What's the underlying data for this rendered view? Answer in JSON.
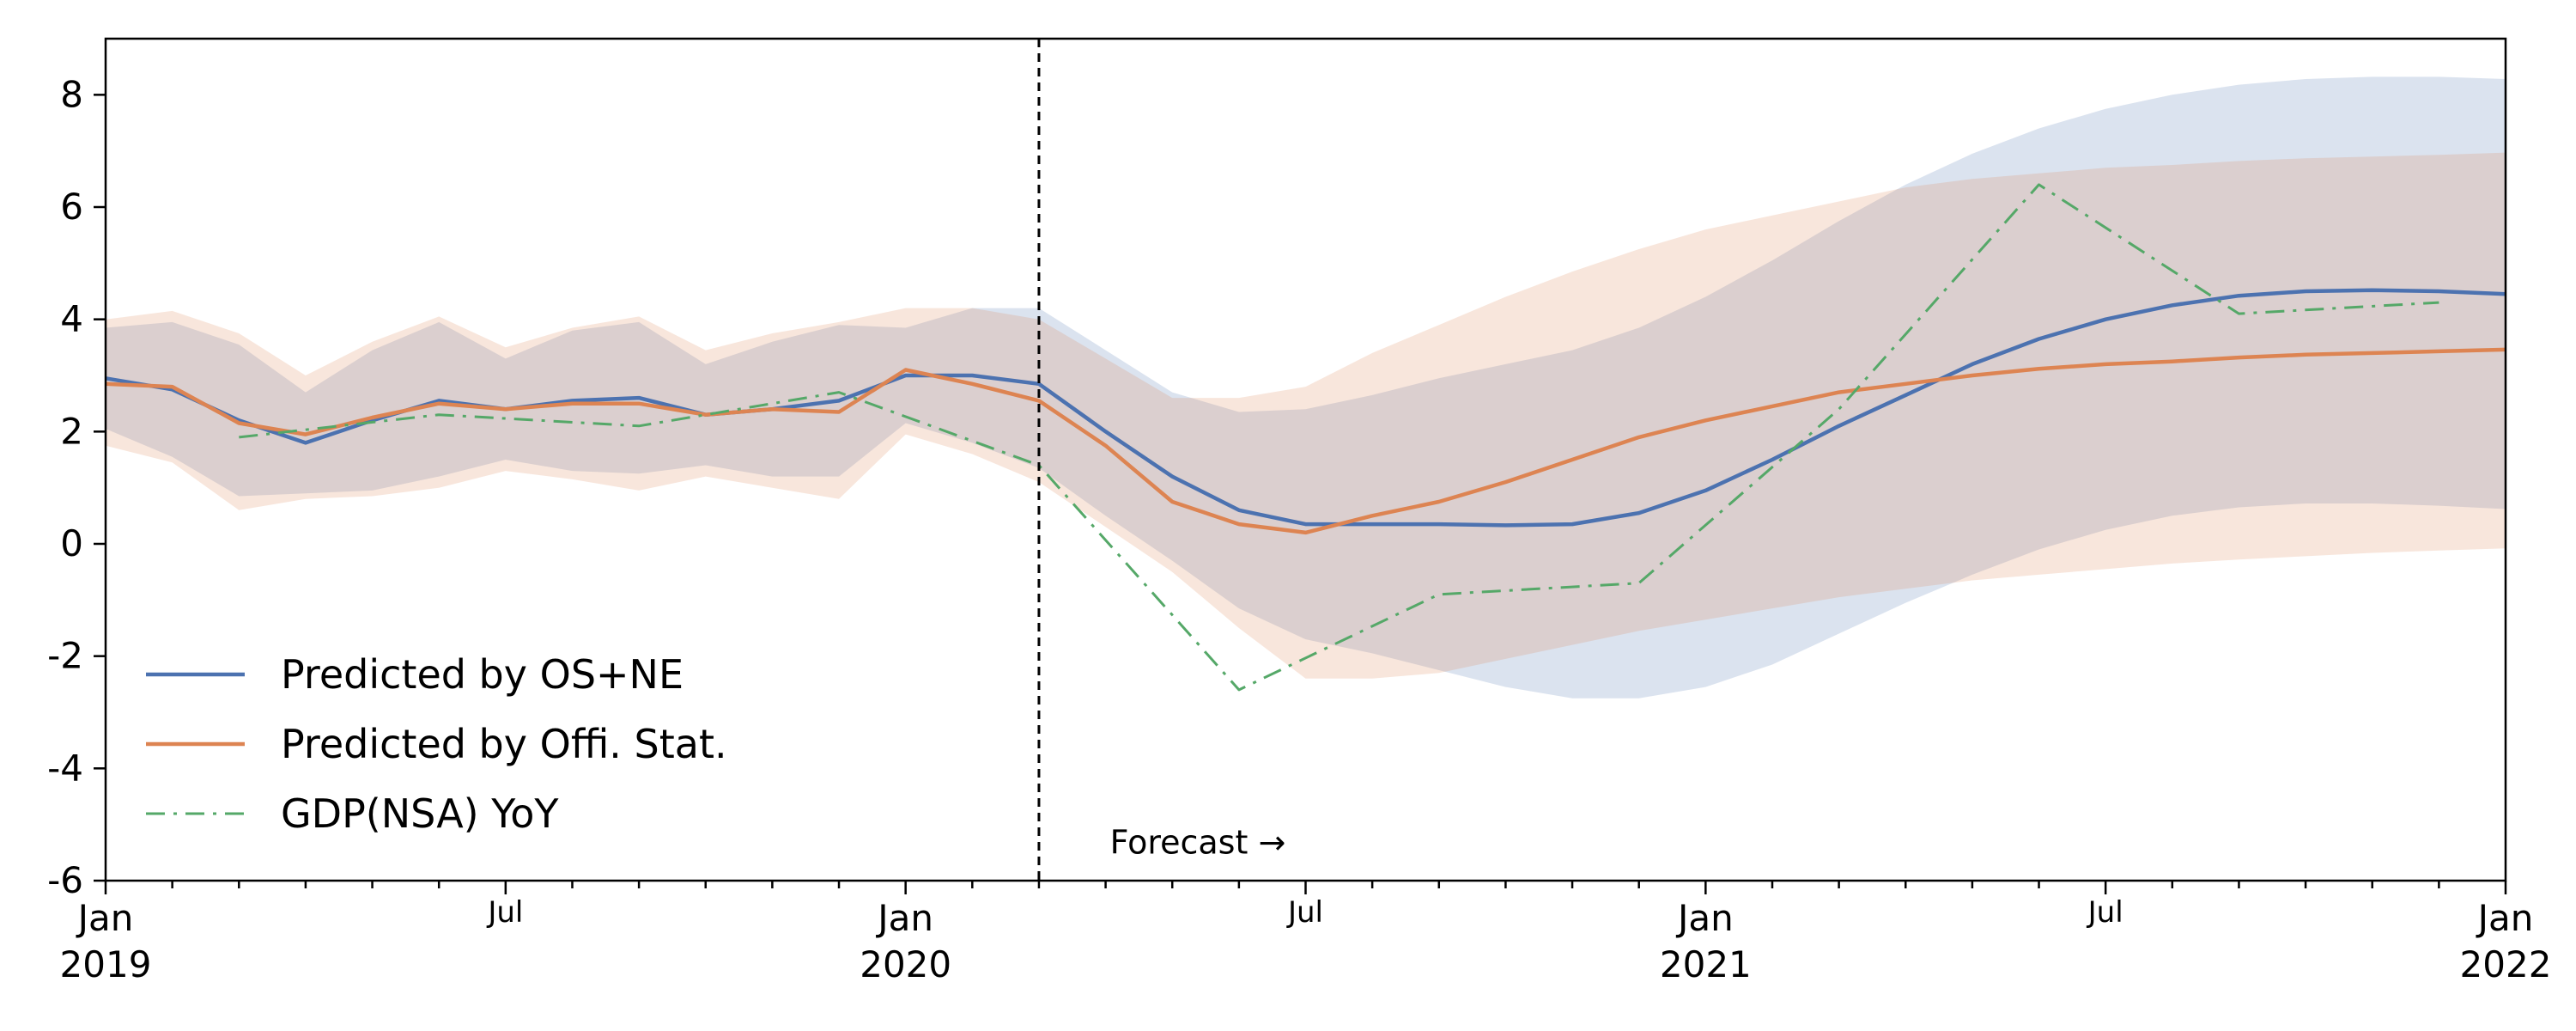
{
  "chart_data": {
    "type": "line",
    "x_unit": "month",
    "xlim": [
      "2019-01",
      "2022-01"
    ],
    "ylim": [
      -6,
      9
    ],
    "yticks": [
      -6,
      -4,
      -2,
      0,
      2,
      4,
      6,
      8
    ],
    "ytick_labels": [
      "-6",
      "-4",
      "-2",
      "0",
      "2",
      "4",
      "6",
      "8"
    ],
    "xticks_major": [
      {
        "x": "2019-01",
        "label_top": "Jan",
        "label_bottom": "2019"
      },
      {
        "x": "2019-07",
        "label_top": "Jul",
        "label_bottom": ""
      },
      {
        "x": "2020-01",
        "label_top": "Jan",
        "label_bottom": "2020"
      },
      {
        "x": "2020-07",
        "label_top": "Jul",
        "label_bottom": ""
      },
      {
        "x": "2021-01",
        "label_top": "Jan",
        "label_bottom": "2021"
      },
      {
        "x": "2021-07",
        "label_top": "Jul",
        "label_bottom": ""
      },
      {
        "x": "2022-01",
        "label_top": "Jan",
        "label_bottom": "2022"
      }
    ],
    "grid": false,
    "legend_position": "lower-left",
    "vline": {
      "x": "2020-03",
      "style": "dashed",
      "color": "#000000"
    },
    "annotation": {
      "text": "Forecast →",
      "x": "2020-04",
      "y": -5.3
    },
    "series": [
      {
        "name": "Predicted by OS+NE",
        "color": "#4c72b0",
        "style": "solid",
        "x": [
          "2019-01",
          "2019-02",
          "2019-03",
          "2019-04",
          "2019-05",
          "2019-06",
          "2019-07",
          "2019-08",
          "2019-09",
          "2019-10",
          "2019-11",
          "2019-12",
          "2020-01",
          "2020-02",
          "2020-03",
          "2020-04",
          "2020-05",
          "2020-06",
          "2020-07",
          "2020-08",
          "2020-09",
          "2020-10",
          "2020-11",
          "2020-12",
          "2021-01",
          "2021-02",
          "2021-03",
          "2021-04",
          "2021-05",
          "2021-06",
          "2021-07",
          "2021-08",
          "2021-09",
          "2021-10",
          "2021-11",
          "2021-12",
          "2022-01"
        ],
        "values": [
          2.95,
          2.75,
          2.2,
          1.8,
          2.2,
          2.55,
          2.4,
          2.55,
          2.6,
          2.3,
          2.4,
          2.55,
          3.0,
          3.0,
          2.85,
          2.0,
          1.2,
          0.6,
          0.35,
          0.35,
          0.35,
          0.33,
          0.35,
          0.55,
          0.95,
          1.5,
          2.1,
          2.65,
          3.2,
          3.65,
          4.0,
          4.25,
          4.42,
          4.5,
          4.52,
          4.5,
          4.45
        ]
      },
      {
        "name": "Predicted by Offi. Stat.",
        "color": "#dd8452",
        "style": "solid",
        "x": [
          "2019-01",
          "2019-02",
          "2019-03",
          "2019-04",
          "2019-05",
          "2019-06",
          "2019-07",
          "2019-08",
          "2019-09",
          "2019-10",
          "2019-11",
          "2019-12",
          "2020-01",
          "2020-02",
          "2020-03",
          "2020-04",
          "2020-05",
          "2020-06",
          "2020-07",
          "2020-08",
          "2020-09",
          "2020-10",
          "2020-11",
          "2020-12",
          "2021-01",
          "2021-02",
          "2021-03",
          "2021-04",
          "2021-05",
          "2021-06",
          "2021-07",
          "2021-08",
          "2021-09",
          "2021-10",
          "2021-11",
          "2021-12",
          "2022-01"
        ],
        "values": [
          2.85,
          2.8,
          2.15,
          1.95,
          2.25,
          2.5,
          2.4,
          2.5,
          2.5,
          2.3,
          2.4,
          2.35,
          3.1,
          2.85,
          2.55,
          1.75,
          0.75,
          0.35,
          0.2,
          0.5,
          0.75,
          1.1,
          1.5,
          1.9,
          2.2,
          2.45,
          2.7,
          2.85,
          3.0,
          3.12,
          3.2,
          3.25,
          3.32,
          3.37,
          3.4,
          3.43,
          3.46
        ]
      },
      {
        "name": "GDP(NSA) YoY",
        "color": "#55a868",
        "style": "dashdot",
        "x": [
          "2019-03",
          "2019-06",
          "2019-09",
          "2019-12",
          "2020-03",
          "2020-06",
          "2020-09",
          "2020-12",
          "2021-03",
          "2021-06",
          "2021-09",
          "2021-12"
        ],
        "values": [
          1.9,
          2.3,
          2.1,
          2.7,
          1.4,
          -2.6,
          -0.9,
          -0.7,
          2.4,
          6.4,
          4.1,
          4.3
        ]
      }
    ],
    "bands": [
      {
        "series": "Predicted by OS+NE",
        "color": "#4c72b0",
        "opacity": 0.2,
        "x": [
          "2019-01",
          "2019-02",
          "2019-03",
          "2019-04",
          "2019-05",
          "2019-06",
          "2019-07",
          "2019-08",
          "2019-09",
          "2019-10",
          "2019-11",
          "2019-12",
          "2020-01",
          "2020-02",
          "2020-03",
          "2020-04",
          "2020-05",
          "2020-06",
          "2020-07",
          "2020-08",
          "2020-09",
          "2020-10",
          "2020-11",
          "2020-12",
          "2021-01",
          "2021-02",
          "2021-03",
          "2021-04",
          "2021-05",
          "2021-06",
          "2021-07",
          "2021-08",
          "2021-09",
          "2021-10",
          "2021-11",
          "2021-12",
          "2022-01"
        ],
        "upper": [
          3.85,
          3.95,
          3.55,
          2.7,
          3.45,
          3.95,
          3.3,
          3.8,
          3.95,
          3.2,
          3.6,
          3.9,
          3.85,
          4.2,
          4.2,
          3.45,
          2.7,
          2.35,
          2.4,
          2.65,
          2.95,
          3.2,
          3.45,
          3.85,
          4.4,
          5.05,
          5.75,
          6.4,
          6.95,
          7.4,
          7.75,
          8.0,
          8.18,
          8.28,
          8.32,
          8.32,
          8.28
        ],
        "lower": [
          2.05,
          1.55,
          0.85,
          0.9,
          0.95,
          1.2,
          1.5,
          1.3,
          1.25,
          1.4,
          1.2,
          1.2,
          2.15,
          1.8,
          1.35,
          0.5,
          -0.3,
          -1.15,
          -1.7,
          -1.95,
          -2.25,
          -2.55,
          -2.75,
          -2.75,
          -2.55,
          -2.15,
          -1.6,
          -1.05,
          -0.55,
          -0.1,
          0.25,
          0.5,
          0.65,
          0.72,
          0.72,
          0.68,
          0.62
        ]
      },
      {
        "series": "Predicted by Offi. Stat.",
        "color": "#dd8452",
        "opacity": 0.2,
        "x": [
          "2019-01",
          "2019-02",
          "2019-03",
          "2019-04",
          "2019-05",
          "2019-06",
          "2019-07",
          "2019-08",
          "2019-09",
          "2019-10",
          "2019-11",
          "2019-12",
          "2020-01",
          "2020-02",
          "2020-03",
          "2020-04",
          "2020-05",
          "2020-06",
          "2020-07",
          "2020-08",
          "2020-09",
          "2020-10",
          "2020-11",
          "2020-12",
          "2021-01",
          "2021-02",
          "2021-03",
          "2021-04",
          "2021-05",
          "2021-06",
          "2021-07",
          "2021-08",
          "2021-09",
          "2021-10",
          "2021-11",
          "2021-12",
          "2022-01"
        ],
        "upper": [
          4.0,
          4.15,
          3.75,
          3.0,
          3.6,
          4.05,
          3.5,
          3.85,
          4.05,
          3.45,
          3.75,
          3.95,
          4.2,
          4.2,
          4.0,
          3.3,
          2.6,
          2.6,
          2.8,
          3.4,
          3.9,
          4.4,
          4.85,
          5.25,
          5.6,
          5.85,
          6.1,
          6.35,
          6.5,
          6.6,
          6.7,
          6.75,
          6.82,
          6.87,
          6.9,
          6.93,
          6.97
        ],
        "lower": [
          1.75,
          1.45,
          0.6,
          0.8,
          0.85,
          1.0,
          1.3,
          1.15,
          0.95,
          1.2,
          1.0,
          0.8,
          1.95,
          1.6,
          1.1,
          0.3,
          -0.5,
          -1.5,
          -2.4,
          -2.4,
          -2.3,
          -2.05,
          -1.8,
          -1.55,
          -1.35,
          -1.15,
          -0.95,
          -0.8,
          -0.65,
          -0.55,
          -0.45,
          -0.35,
          -0.28,
          -0.22,
          -0.16,
          -0.12,
          -0.08
        ]
      }
    ]
  }
}
